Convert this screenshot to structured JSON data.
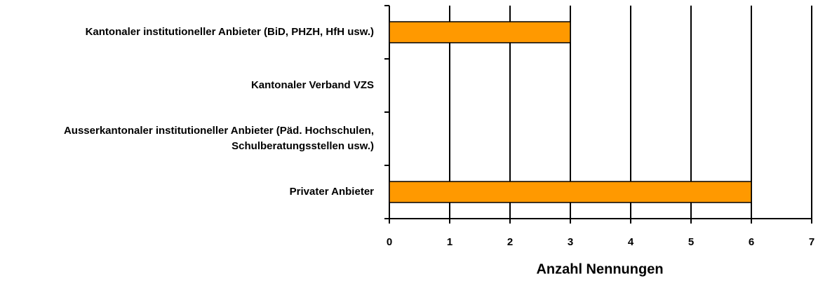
{
  "chart_data": {
    "type": "barh",
    "categories": [
      "Kantonaler institutioneller Anbieter (BiD, PHZH, HfH usw.)",
      "Kantonaler Verband VZS",
      "Ausserkantonaler institutioneller Anbieter (Päd. Hochschulen, Schulberatungsstellen usw.)",
      "Privater Anbieter"
    ],
    "values": [
      3,
      0,
      0,
      6
    ],
    "color": "#ff9900",
    "xlabel": "Anzahl Nennungen",
    "xlim": [
      0,
      7
    ],
    "xticks": [
      0,
      1,
      2,
      3,
      4,
      5,
      6,
      7
    ],
    "grid": true
  }
}
